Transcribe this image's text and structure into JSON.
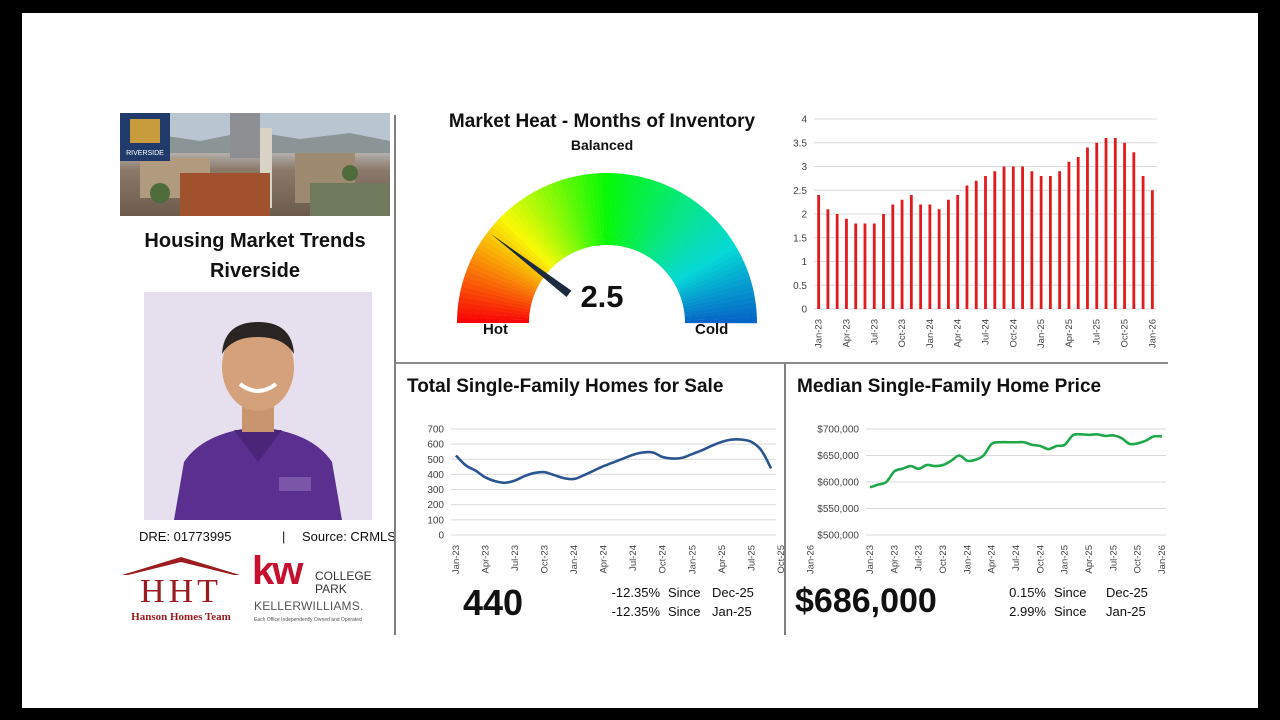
{
  "sidebar": {
    "city_badge": "RIVERSIDE",
    "title_line1": "Housing Market Trends",
    "title_line2": "Riverside",
    "dre": "DRE: 01773995",
    "separator": "|",
    "source": "Source: CRMLS",
    "hht_logo": "HHT",
    "hht_sub": "Hanson Homes Team",
    "kw_logo": "kw",
    "kw_college": "COLLEGE",
    "kw_park": "PARK",
    "kw_keller": "KELLERWILLIAMS.",
    "kw_tagline": "Each Office Independently Owned and Operated"
  },
  "gauge": {
    "title": "Market Heat - Months of Inventory",
    "top_label": "Balanced",
    "left_label": "Hot",
    "right_label": "Cold",
    "value": "2.5",
    "value_num": 2.5,
    "min": 0,
    "max": 12
  },
  "homes_for_sale": {
    "title": "Total Single-Family Homes for Sale",
    "big_value": "440",
    "stats": [
      {
        "pct": "-12.35%",
        "since": "Since",
        "period": "Dec-25"
      },
      {
        "pct": "-12.35%",
        "since": "Since",
        "period": "Jan-25"
      }
    ]
  },
  "median_price": {
    "title": "Median Single-Family Home Price",
    "big_value": "$686,000",
    "stats": [
      {
        "pct": "0.15%",
        "since": "Since",
        "period": "Dec-25"
      },
      {
        "pct": "2.99%",
        "since": "Since",
        "period": "Jan-25"
      }
    ]
  },
  "colors": {
    "bar": "#e31a1c",
    "inventory_line": "#2b5591",
    "price_line": "#1ea84a",
    "divider": "#7f7f7f"
  },
  "chart_data": [
    {
      "id": "months_inventory",
      "type": "bar",
      "x_labels": [
        "Jan-23",
        "Apr-23",
        "Jul-23",
        "Oct-23",
        "Jan-24",
        "Apr-24",
        "Jul-24",
        "Oct-24",
        "Jan-25",
        "Apr-25",
        "Jul-25",
        "Oct-25",
        "Jan-26"
      ],
      "values": [
        2.4,
        2.1,
        2.0,
        1.9,
        1.8,
        1.8,
        1.8,
        2.0,
        2.2,
        2.3,
        2.4,
        2.2,
        2.2,
        2.1,
        2.3,
        2.4,
        2.6,
        2.7,
        2.8,
        2.9,
        3.0,
        3.0,
        3.0,
        2.9,
        2.8,
        2.8,
        2.9,
        3.1,
        3.2,
        3.4,
        3.5,
        3.6,
        3.6,
        3.5,
        3.3,
        2.8,
        2.5
      ],
      "ylim": [
        0,
        4
      ],
      "y_ticks": [
        "0",
        "0.5",
        "1",
        "1.5",
        "2",
        "2.5",
        "3",
        "3.5",
        "4"
      ],
      "grid": true
    },
    {
      "id": "homes_for_sale",
      "type": "line",
      "x_labels": [
        "Jan-23",
        "Apr-23",
        "Jul-23",
        "Oct-23",
        "Jan-24",
        "Apr-24",
        "Jul-24",
        "Oct-24",
        "Jan-25",
        "Apr-25",
        "Jul-25",
        "Oct-25",
        "Jan-26"
      ],
      "values": [
        525,
        460,
        425,
        380,
        355,
        345,
        360,
        390,
        410,
        415,
        395,
        375,
        370,
        395,
        425,
        455,
        480,
        505,
        530,
        545,
        545,
        515,
        505,
        510,
        535,
        560,
        590,
        615,
        630,
        630,
        615,
        560,
        440
      ],
      "ylim": [
        0,
        700
      ],
      "y_ticks": [
        "0",
        "100",
        "200",
        "300",
        "400",
        "500",
        "600",
        "700"
      ],
      "grid": true
    },
    {
      "id": "median_price",
      "type": "line",
      "x_labels": [
        "Jan-23",
        "Apr-23",
        "Jul-23",
        "Oct-23",
        "Jan-24",
        "Apr-24",
        "Jul-24",
        "Oct-24",
        "Jan-25",
        "Apr-25",
        "Jul-25",
        "Oct-25",
        "Jan-26"
      ],
      "values": [
        590000,
        595000,
        600000,
        620000,
        625000,
        630000,
        625000,
        632000,
        630000,
        632000,
        640000,
        650000,
        640000,
        642000,
        650000,
        672000,
        675000,
        675000,
        675000,
        675000,
        670000,
        668000,
        662000,
        668000,
        670000,
        688000,
        690000,
        689000,
        690000,
        687000,
        688000,
        683000,
        672000,
        673000,
        678000,
        686000,
        686000
      ],
      "ylim": [
        500000,
        700000
      ],
      "y_ticks": [
        "$500,000",
        "$550,000",
        "$600,000",
        "$650,000",
        "$700,000"
      ],
      "grid": true
    }
  ]
}
